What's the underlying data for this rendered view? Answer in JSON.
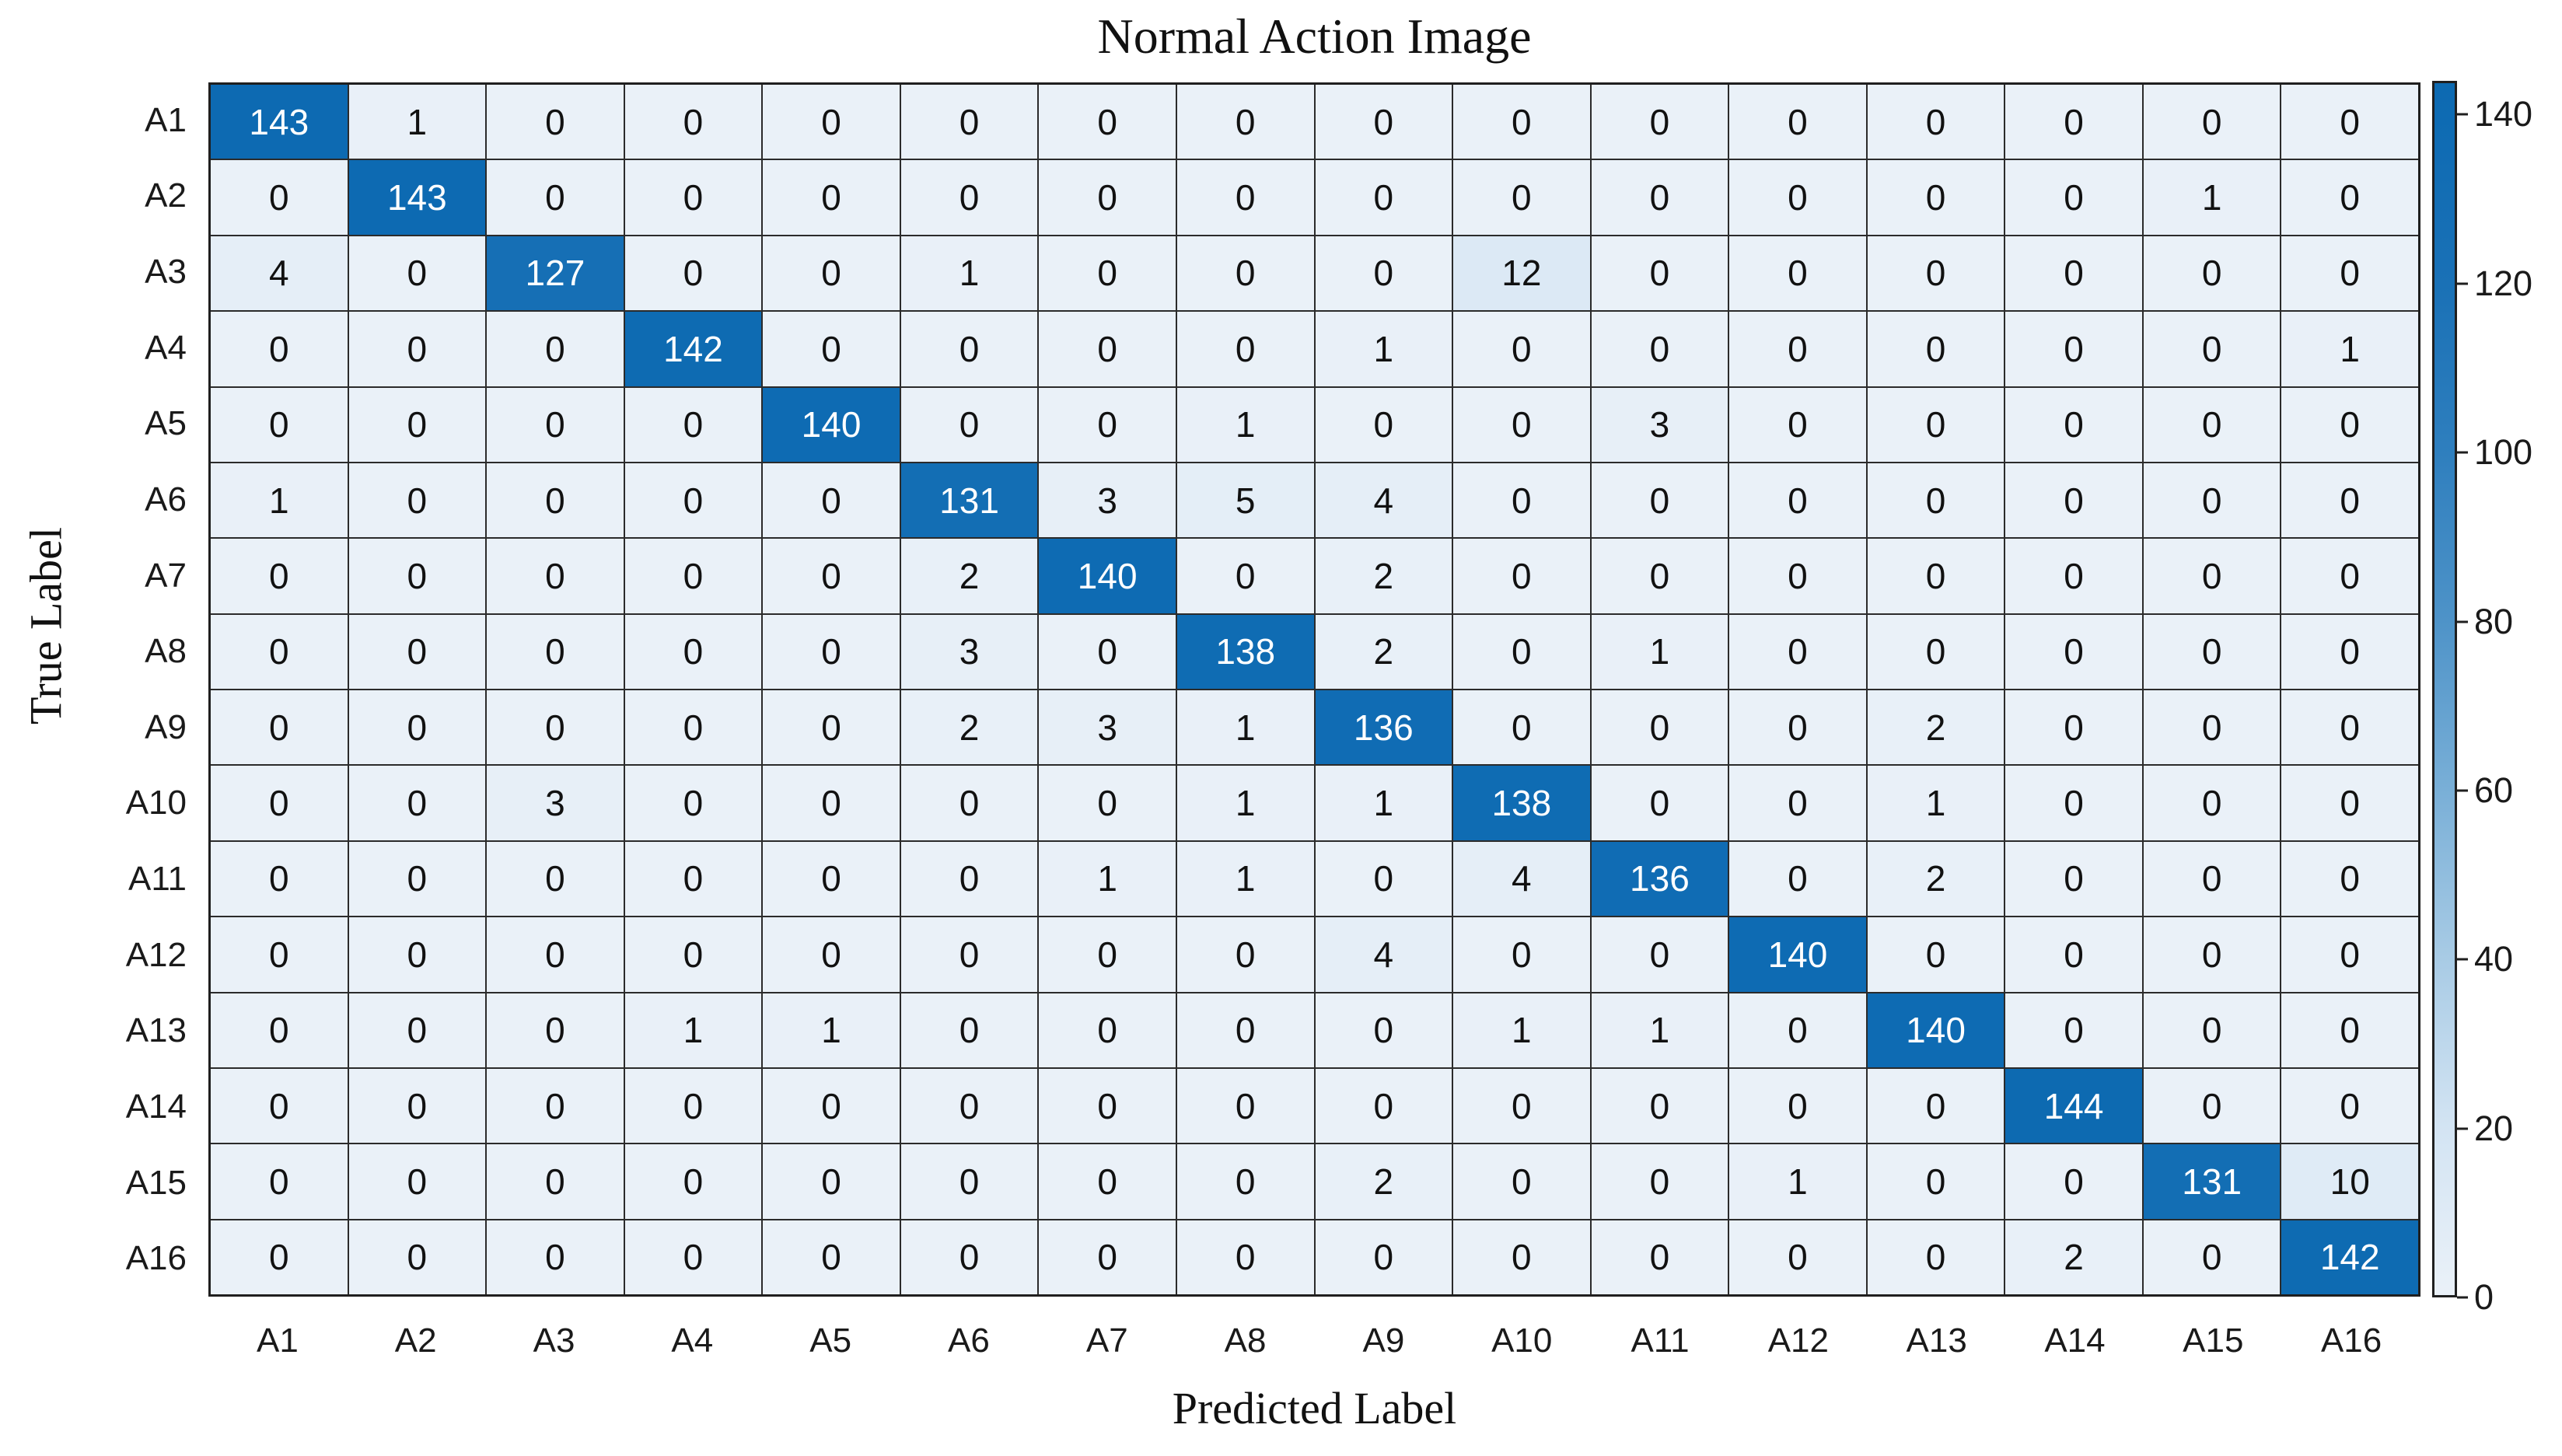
{
  "chart_data": {
    "type": "heatmap",
    "title": "Normal Action Image",
    "xlabel": "Predicted Label",
    "ylabel": "True Label",
    "x_labels": [
      "A1",
      "A2",
      "A3",
      "A4",
      "A5",
      "A6",
      "A7",
      "A8",
      "A9",
      "A10",
      "A11",
      "A12",
      "A13",
      "A14",
      "A15",
      "A16"
    ],
    "y_labels": [
      "A1",
      "A2",
      "A3",
      "A4",
      "A5",
      "A6",
      "A7",
      "A8",
      "A9",
      "A10",
      "A11",
      "A12",
      "A13",
      "A14",
      "A15",
      "A16"
    ],
    "matrix": [
      [
        143,
        1,
        0,
        0,
        0,
        0,
        0,
        0,
        0,
        0,
        0,
        0,
        0,
        0,
        0,
        0
      ],
      [
        0,
        143,
        0,
        0,
        0,
        0,
        0,
        0,
        0,
        0,
        0,
        0,
        0,
        0,
        1,
        0
      ],
      [
        4,
        0,
        127,
        0,
        0,
        1,
        0,
        0,
        0,
        12,
        0,
        0,
        0,
        0,
        0,
        0
      ],
      [
        0,
        0,
        0,
        142,
        0,
        0,
        0,
        0,
        1,
        0,
        0,
        0,
        0,
        0,
        0,
        1
      ],
      [
        0,
        0,
        0,
        0,
        140,
        0,
        0,
        1,
        0,
        0,
        3,
        0,
        0,
        0,
        0,
        0
      ],
      [
        1,
        0,
        0,
        0,
        0,
        131,
        3,
        5,
        4,
        0,
        0,
        0,
        0,
        0,
        0,
        0
      ],
      [
        0,
        0,
        0,
        0,
        0,
        2,
        140,
        0,
        2,
        0,
        0,
        0,
        0,
        0,
        0,
        0
      ],
      [
        0,
        0,
        0,
        0,
        0,
        3,
        0,
        138,
        2,
        0,
        1,
        0,
        0,
        0,
        0,
        0
      ],
      [
        0,
        0,
        0,
        0,
        0,
        2,
        3,
        1,
        136,
        0,
        0,
        0,
        2,
        0,
        0,
        0
      ],
      [
        0,
        0,
        3,
        0,
        0,
        0,
        0,
        1,
        1,
        138,
        0,
        0,
        1,
        0,
        0,
        0
      ],
      [
        0,
        0,
        0,
        0,
        0,
        0,
        1,
        1,
        0,
        4,
        136,
        0,
        2,
        0,
        0,
        0
      ],
      [
        0,
        0,
        0,
        0,
        0,
        0,
        0,
        0,
        4,
        0,
        0,
        140,
        0,
        0,
        0,
        0
      ],
      [
        0,
        0,
        0,
        1,
        1,
        0,
        0,
        0,
        0,
        1,
        1,
        0,
        140,
        0,
        0,
        0
      ],
      [
        0,
        0,
        0,
        0,
        0,
        0,
        0,
        0,
        0,
        0,
        0,
        0,
        0,
        144,
        0,
        0
      ],
      [
        0,
        0,
        0,
        0,
        0,
        0,
        0,
        0,
        2,
        0,
        0,
        1,
        0,
        0,
        131,
        10
      ],
      [
        0,
        0,
        0,
        0,
        0,
        0,
        0,
        0,
        0,
        0,
        0,
        0,
        0,
        2,
        0,
        142
      ]
    ],
    "grid_on": true,
    "legend_position": "none",
    "colorbar": {
      "position": "right",
      "vmin": 0,
      "vmax": 144,
      "ticks": [
        0,
        20,
        40,
        60,
        80,
        100,
        120,
        140
      ]
    },
    "colors": {
      "scale_stops": [
        [
          0,
          "#eaf1f8"
        ],
        [
          20,
          "#d3e4f3"
        ],
        [
          40,
          "#a8cbe5"
        ],
        [
          60,
          "#79afd7"
        ],
        [
          80,
          "#4e93c8"
        ],
        [
          100,
          "#2f7fbe"
        ],
        [
          120,
          "#1a71b6"
        ],
        [
          140,
          "#0e6bb3"
        ],
        [
          144,
          "#0d6ab1"
        ]
      ],
      "grid_line": "#2b2b2b",
      "cell_text_dark": "#111111",
      "cell_text_light": "#ffffff",
      "white_text_threshold": 100
    }
  }
}
